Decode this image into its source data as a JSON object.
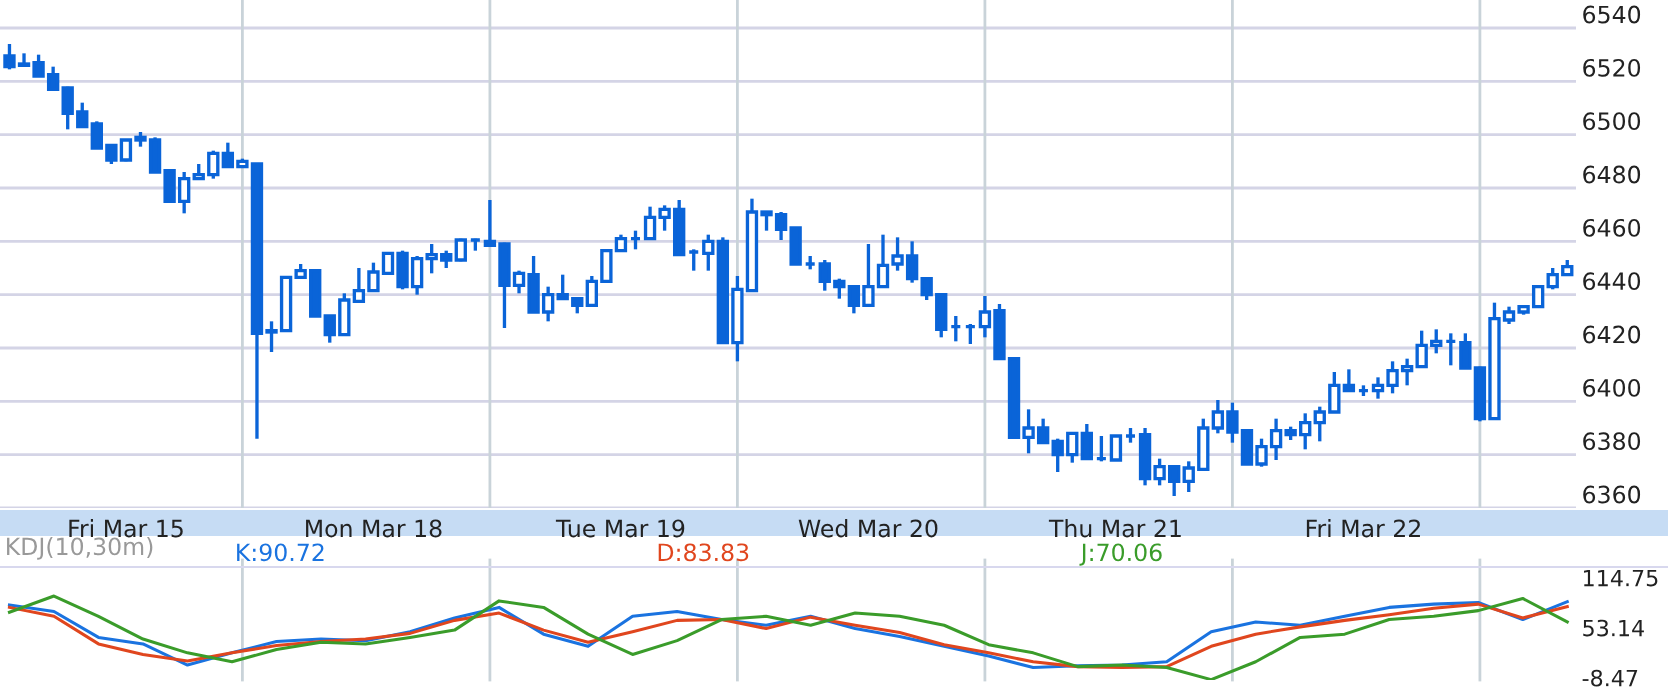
{
  "chart_data": [
    {
      "type": "candlestick",
      "color": "#0a64d8",
      "grid": "y",
      "categories": [
        null,
        null,
        null,
        null,
        null,
        null,
        null,
        null,
        "Fri Mar 15",
        null,
        null,
        null,
        null,
        null,
        null,
        null,
        null,
        null,
        null,
        null,
        null,
        null,
        null,
        null,
        null,
        "Mon Mar 18",
        null,
        null,
        null,
        null,
        null,
        null,
        null,
        null,
        null,
        null,
        null,
        null,
        null,
        null,
        null,
        null,
        "Tue Mar 19",
        null,
        null,
        null,
        null,
        null,
        null,
        null,
        null,
        null,
        null,
        null,
        null,
        null,
        null,
        null,
        null,
        "Wed Mar 20",
        null,
        null,
        null,
        null,
        null,
        null,
        null,
        null,
        null,
        null,
        null,
        null,
        null,
        null,
        null,
        null,
        "Thu Mar 21",
        null,
        null,
        null,
        null,
        null,
        null,
        null,
        null,
        null,
        null,
        null,
        null,
        null,
        null,
        null,
        null,
        "Fri Mar 22",
        null,
        null,
        null,
        null,
        null,
        null,
        null,
        null,
        null,
        null,
        null,
        null,
        null,
        null
      ],
      "ohlc": [
        [
          6529.5,
          6534,
          6524.5,
          6525.5
        ],
        [
          6526.5,
          6530.5,
          6525.5,
          6526
        ],
        [
          6527,
          6530,
          6522,
          6522
        ],
        [
          6522.5,
          6525.5,
          6516.5,
          6517
        ],
        [
          6517.5,
          6518,
          6502,
          6508
        ],
        [
          6508.5,
          6512,
          6503,
          6503
        ],
        [
          6504,
          6505,
          6495,
          6495
        ],
        [
          6496,
          6496,
          6489,
          6490.5
        ],
        [
          6490.5,
          6498,
          6490,
          6498
        ],
        [
          6498,
          6501,
          6495.5,
          6499
        ],
        [
          6498,
          6499,
          6486,
          6486
        ],
        [
          6486.5,
          6487,
          6475,
          6475
        ],
        [
          6475,
          6486,
          6470.5,
          6483.5
        ],
        [
          6483.5,
          6489,
          6483,
          6485
        ],
        [
          6485,
          6494,
          6483.5,
          6493
        ],
        [
          6493,
          6497,
          6488,
          6488
        ],
        [
          6488,
          6491,
          6487.5,
          6490
        ],
        [
          6489,
          6489,
          6386,
          6425.5
        ],
        [
          6426,
          6430,
          6418.5,
          6426.5
        ],
        [
          6426.5,
          6447,
          6426,
          6446.5
        ],
        [
          6446.5,
          6451.5,
          6446,
          6449
        ],
        [
          6449,
          6449.5,
          6432,
          6432
        ],
        [
          6432,
          6432,
          6422,
          6425
        ],
        [
          6425,
          6440.5,
          6425,
          6438
        ],
        [
          6437.5,
          6450,
          6437.5,
          6441.5
        ],
        [
          6441.5,
          6452,
          6441,
          6448.5
        ],
        [
          6448,
          6456,
          6448,
          6455.5
        ],
        [
          6455.5,
          6456.5,
          6442,
          6443
        ],
        [
          6443,
          6454.5,
          6440,
          6453.5
        ],
        [
          6453.5,
          6459,
          6448,
          6455
        ],
        [
          6455,
          6456.5,
          6450,
          6453
        ],
        [
          6453,
          6461,
          6452.5,
          6460.5
        ],
        [
          6460.5,
          6461,
          6456.5,
          6460.5
        ],
        [
          6460,
          6475.5,
          6458.5,
          6458.5
        ],
        [
          6459,
          6459.5,
          6427.5,
          6443.5
        ],
        [
          6443.5,
          6449,
          6440.5,
          6448
        ],
        [
          6447.5,
          6454.5,
          6433.5,
          6433.5
        ],
        [
          6433.5,
          6443,
          6430,
          6440
        ],
        [
          6440,
          6447.5,
          6438.5,
          6438.5
        ],
        [
          6438.5,
          6438.5,
          6433,
          6436
        ],
        [
          6436,
          6447,
          6436,
          6445
        ],
        [
          6445,
          6457,
          6445,
          6456.5
        ],
        [
          6456.5,
          6462.5,
          6456,
          6461
        ],
        [
          6461,
          6464,
          6457,
          6461
        ],
        [
          6461,
          6473,
          6461,
          6469
        ],
        [
          6469,
          6473.5,
          6464,
          6472
        ],
        [
          6472,
          6475.5,
          6455,
          6455
        ],
        [
          6456,
          6457,
          6449,
          6456
        ],
        [
          6455.5,
          6462.5,
          6449,
          6460
        ],
        [
          6460,
          6461.5,
          6422,
          6422
        ],
        [
          6422,
          6447,
          6415,
          6442
        ],
        [
          6441.5,
          6476,
          6441,
          6471
        ],
        [
          6471,
          6471,
          6464,
          6470
        ],
        [
          6470,
          6471,
          6460.5,
          6464.5
        ],
        [
          6465,
          6465,
          6451.5,
          6451.5
        ],
        [
          6451.5,
          6454.5,
          6449.5,
          6451.5
        ],
        [
          6451.5,
          6453,
          6441.5,
          6445
        ],
        [
          6445,
          6446,
          6438.5,
          6443
        ],
        [
          6443,
          6443,
          6433,
          6436
        ],
        [
          6436,
          6459,
          6436,
          6443
        ],
        [
          6443,
          6462.5,
          6443,
          6451
        ],
        [
          6451.5,
          6461.5,
          6449,
          6454.5
        ],
        [
          6454.5,
          6460,
          6444.5,
          6446
        ],
        [
          6446,
          6446,
          6438,
          6440
        ],
        [
          6440,
          6440,
          6424,
          6427
        ],
        [
          6428,
          6432,
          6422.5,
          6428
        ],
        [
          6428,
          6429,
          6421.5,
          6428
        ],
        [
          6428,
          6439.5,
          6424,
          6433.5
        ],
        [
          6434,
          6436.5,
          6416,
          6416
        ],
        [
          6416,
          6416,
          6386.5,
          6386.5
        ],
        [
          6386.5,
          6397,
          6380.5,
          6390
        ],
        [
          6390,
          6393.5,
          6384.5,
          6384.5
        ],
        [
          6385,
          6386,
          6373.5,
          6380
        ],
        [
          6380,
          6388,
          6377,
          6388
        ],
        [
          6388,
          6391.5,
          6378.5,
          6378.5
        ],
        [
          6378.5,
          6387,
          6377.5,
          6378.5
        ],
        [
          6378,
          6387,
          6378,
          6387
        ],
        [
          6387,
          6390,
          6384.5,
          6387
        ],
        [
          6387.5,
          6390,
          6368.5,
          6371
        ],
        [
          6371,
          6378.5,
          6368.5,
          6375.5
        ],
        [
          6375.5,
          6375.5,
          6364.5,
          6370
        ],
        [
          6370,
          6377.5,
          6366,
          6375
        ],
        [
          6374.5,
          6393.5,
          6374,
          6390
        ],
        [
          6390,
          6400.5,
          6388,
          6396
        ],
        [
          6396,
          6399.5,
          6384.5,
          6388.5
        ],
        [
          6389,
          6389,
          6376.5,
          6376.5
        ],
        [
          6376.5,
          6386,
          6375.5,
          6383
        ],
        [
          6383,
          6393.5,
          6378,
          6389
        ],
        [
          6389,
          6390.5,
          6385.5,
          6387.5
        ],
        [
          6387.5,
          6395.5,
          6382,
          6392
        ],
        [
          6392,
          6398,
          6385,
          6396
        ],
        [
          6396,
          6411,
          6396,
          6406
        ],
        [
          6406,
          6412,
          6404,
          6404
        ],
        [
          6404,
          6406,
          6402,
          6404
        ],
        [
          6404,
          6409,
          6401,
          6406
        ],
        [
          6406,
          6415,
          6403,
          6411.5
        ],
        [
          6411.5,
          6416,
          6406,
          6413
        ],
        [
          6413,
          6426.5,
          6413,
          6421
        ],
        [
          6421,
          6427,
          6418,
          6422.5
        ],
        [
          6422.5,
          6425.5,
          6413.5,
          6422.5
        ],
        [
          6422,
          6425.5,
          6412.5,
          6412.5
        ],
        [
          6412.5,
          6413,
          6392.5,
          6393.5
        ],
        [
          6393.5,
          6437,
          6393.5,
          6431
        ],
        [
          6430.5,
          6435.5,
          6429,
          6433.5
        ],
        [
          6433.5,
          6436,
          6432.5,
          6435.5
        ],
        [
          6435.5,
          6443,
          6435,
          6443
        ],
        [
          6443,
          6450,
          6442,
          6447.5
        ],
        [
          6447.5,
          6453,
          6447,
          6450.5
        ]
      ],
      "ylim": [
        6360,
        6550.5
      ],
      "yticks": [
        6360,
        6380,
        6400,
        6420,
        6440,
        6460,
        6480,
        6500,
        6520,
        6540
      ]
    },
    {
      "type": "line",
      "title": "KDJ(10,30m)",
      "legend": "top",
      "tick_labels": "y",
      "categories": [
        null,
        null,
        null,
        null,
        null,
        null,
        null,
        null,
        null,
        null,
        null,
        null,
        null,
        null,
        null,
        null,
        null,
        null,
        null,
        null,
        null,
        null,
        null,
        null,
        null,
        null,
        null,
        null,
        null,
        null,
        null,
        null,
        null,
        null,
        null,
        null
      ],
      "series": [
        {
          "name": "K:90.72",
          "color": "#1a73e0",
          "values": [
            84,
            76,
            44,
            36,
            10,
            25,
            39,
            42,
            40,
            51,
            68,
            81,
            48,
            33,
            70,
            76,
            66,
            59,
            70,
            55,
            45,
            33,
            21,
            7,
            9,
            10,
            14,
            51,
            63,
            59,
            70,
            81,
            85,
            87,
            66,
            88
          ]
        },
        {
          "name": "D:83.83",
          "color": "#e0461e",
          "values": [
            81,
            70,
            36,
            23,
            15,
            25,
            34,
            39,
            42,
            49,
            65,
            74,
            53,
            38,
            51,
            65,
            66,
            55,
            69,
            59,
            50,
            35,
            25,
            14,
            8,
            7,
            8,
            33,
            48,
            57,
            65,
            72,
            80,
            85,
            68,
            82
          ]
        },
        {
          "name": "J:70.06",
          "color": "#3a9c2a",
          "values": [
            75,
            95,
            70,
            42,
            25,
            14,
            29,
            38,
            36,
            44,
            53,
            89,
            81,
            48,
            23,
            40,
            66,
            70,
            59,
            74,
            70,
            59,
            35,
            25,
            8,
            10,
            7,
            -8,
            14,
            44,
            48,
            66,
            70,
            77,
            92,
            63
          ]
        }
      ],
      "ylim": [
        -8.47,
        114.75
      ],
      "yticks": [
        -8.47,
        53.14,
        114.75
      ]
    }
  ]
}
